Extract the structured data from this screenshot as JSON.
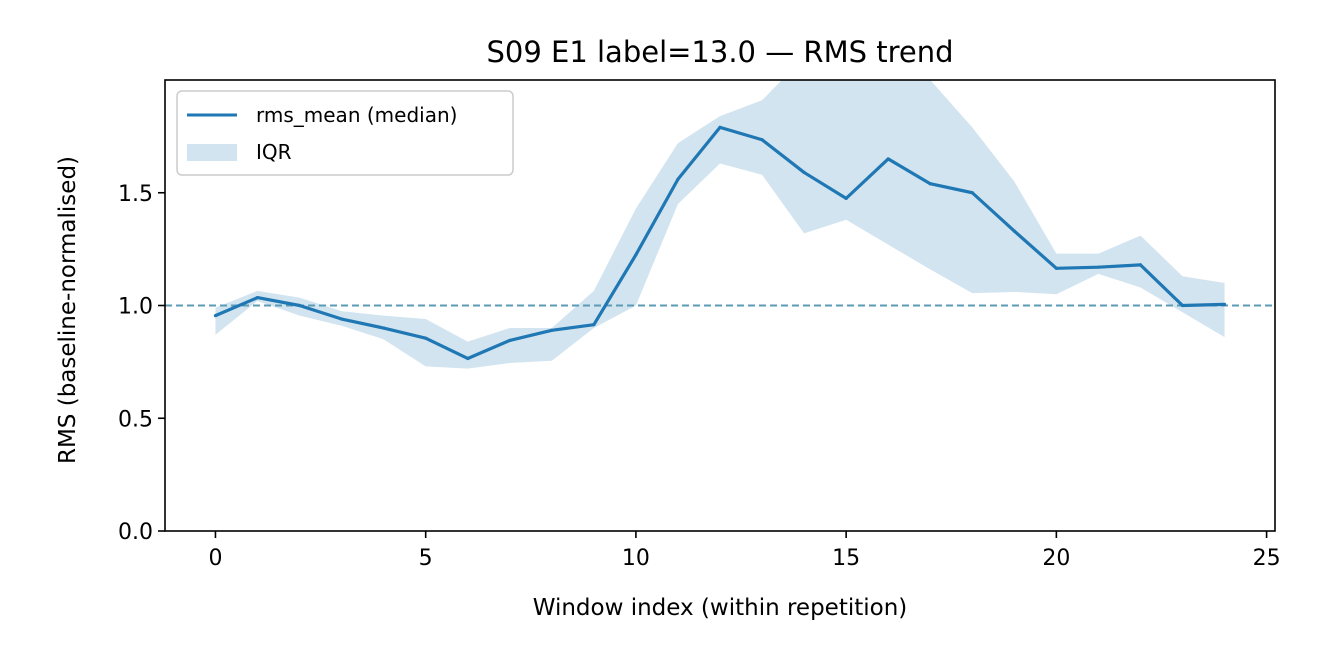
{
  "chart_data": {
    "type": "line",
    "title": "S09 E1 label=13.0 — RMS trend",
    "xlabel": "Window index (within repetition)",
    "ylabel": "RMS (baseline-normalised)",
    "xlim": [
      -1.2,
      25.2
    ],
    "ylim": [
      0,
      2.0
    ],
    "xticks": [
      0,
      5,
      10,
      15,
      20,
      25
    ],
    "yticks": [
      0.0,
      0.5,
      1.0,
      1.5
    ],
    "xtick_labels": [
      "0",
      "5",
      "10",
      "15",
      "20",
      "25"
    ],
    "ytick_labels": [
      "0.0",
      "0.5",
      "1.0",
      "1.5"
    ],
    "reference_line": {
      "y": 1.0,
      "style": "dashed",
      "color": "#5b9bb5"
    },
    "series": [
      {
        "name": "rms_mean (median)",
        "color": "#1f77b4",
        "x": [
          0,
          1,
          2,
          3,
          4,
          5,
          6,
          7,
          8,
          9,
          10,
          11,
          12,
          13,
          14,
          15,
          16,
          17,
          18,
          19,
          20,
          21,
          22,
          23,
          24
        ],
        "values": [
          0.955,
          1.035,
          1.0,
          0.94,
          0.9,
          0.855,
          0.765,
          0.845,
          0.89,
          0.915,
          1.225,
          1.56,
          1.79,
          1.735,
          1.59,
          1.475,
          1.65,
          1.54,
          1.5,
          1.33,
          1.165,
          1.17,
          1.18,
          1.0,
          1.005
        ]
      }
    ],
    "band": {
      "name": "IQR",
      "color": "#1f77b4",
      "opacity": 0.2,
      "x": [
        0,
        1,
        2,
        3,
        4,
        5,
        6,
        7,
        8,
        9,
        10,
        11,
        12,
        13,
        14,
        15,
        16,
        17,
        18,
        19,
        20,
        21,
        22,
        23,
        24
      ],
      "lower": [
        0.87,
        1.02,
        0.955,
        0.91,
        0.85,
        0.73,
        0.72,
        0.745,
        0.755,
        0.9,
        1.0,
        1.45,
        1.63,
        1.58,
        1.32,
        1.38,
        1.27,
        1.16,
        1.055,
        1.06,
        1.05,
        1.14,
        1.08,
        0.97,
        0.86
      ],
      "upper": [
        0.99,
        1.065,
        1.035,
        0.975,
        0.955,
        0.94,
        0.84,
        0.9,
        0.9,
        1.065,
        1.43,
        1.72,
        1.84,
        1.91,
        2.1,
        2.1,
        2.1,
        2.0,
        1.79,
        1.55,
        1.23,
        1.23,
        1.31,
        1.13,
        1.1
      ]
    },
    "legend_position": "upper-left",
    "grid": false
  }
}
